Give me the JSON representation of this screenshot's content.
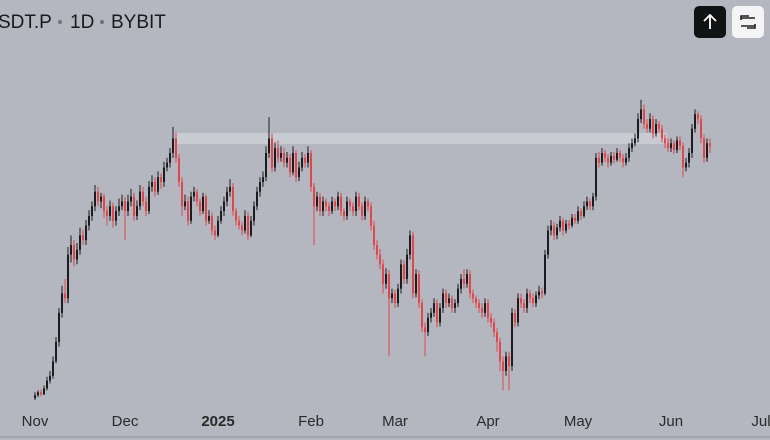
{
  "header": {
    "symbol": "SDT.P",
    "interval": "1D",
    "exchange": "BYBIT"
  },
  "chart_data": {
    "type": "candlestick",
    "up_color": "#1c1c1e",
    "down_color": "#e0474c",
    "ylim": [
      0,
      320
    ],
    "xticks": [
      {
        "value": 0,
        "label": "Nov"
      },
      {
        "value": 30,
        "label": "Dec"
      },
      {
        "value": 61,
        "label": "2025"
      },
      {
        "value": 92,
        "label": "Feb"
      },
      {
        "value": 120,
        "label": "Mar"
      },
      {
        "value": 151,
        "label": "Apr"
      },
      {
        "value": 181,
        "label": "May"
      },
      {
        "value": 212,
        "label": "Jun"
      },
      {
        "value": 242,
        "label": "Jul"
      }
    ],
    "ohlc": [
      [
        2,
        8,
        0,
        5
      ],
      [
        5,
        10,
        3,
        8
      ],
      [
        8,
        11,
        4,
        6
      ],
      [
        6,
        15,
        5,
        12
      ],
      [
        12,
        24,
        10,
        20
      ],
      [
        20,
        30,
        17,
        25
      ],
      [
        25,
        45,
        22,
        40
      ],
      [
        40,
        65,
        38,
        60
      ],
      [
        60,
        95,
        55,
        90
      ],
      [
        90,
        118,
        85,
        110
      ],
      [
        110,
        125,
        100,
        105
      ],
      [
        105,
        158,
        100,
        150
      ],
      [
        150,
        170,
        142,
        160
      ],
      [
        160,
        165,
        138,
        145
      ],
      [
        145,
        162,
        140,
        155
      ],
      [
        155,
        178,
        150,
        170
      ],
      [
        170,
        176,
        160,
        165
      ],
      [
        165,
        186,
        160,
        180
      ],
      [
        180,
        196,
        175,
        190
      ],
      [
        190,
        205,
        185,
        200
      ],
      [
        200,
        222,
        195,
        215
      ],
      [
        215,
        220,
        200,
        205
      ],
      [
        205,
        214,
        198,
        210
      ],
      [
        210,
        213,
        188,
        195
      ],
      [
        195,
        200,
        180,
        190
      ],
      [
        190,
        206,
        185,
        200
      ],
      [
        200,
        204,
        178,
        185
      ],
      [
        185,
        200,
        180,
        195
      ],
      [
        195,
        208,
        190,
        200
      ],
      [
        200,
        212,
        196,
        205
      ],
      [
        205,
        210,
        165,
        195
      ],
      [
        195,
        212,
        190,
        205
      ],
      [
        205,
        218,
        200,
        210
      ],
      [
        210,
        214,
        185,
        190
      ],
      [
        190,
        206,
        186,
        200
      ],
      [
        200,
        222,
        196,
        215
      ],
      [
        215,
        220,
        200,
        205
      ],
      [
        205,
        210,
        190,
        195
      ],
      [
        195,
        226,
        192,
        220
      ],
      [
        220,
        232,
        215,
        225
      ],
      [
        225,
        230,
        210,
        215
      ],
      [
        215,
        236,
        212,
        230
      ],
      [
        230,
        234,
        218,
        225
      ],
      [
        225,
        246,
        220,
        240
      ],
      [
        240,
        250,
        236,
        245
      ],
      [
        245,
        260,
        240,
        255
      ],
      [
        255,
        282,
        250,
        270
      ],
      [
        270,
        276,
        245,
        250
      ],
      [
        250,
        254,
        220,
        225
      ],
      [
        225,
        230,
        190,
        200
      ],
      [
        200,
        212,
        196,
        205
      ],
      [
        205,
        210,
        180,
        185
      ],
      [
        185,
        215,
        182,
        210
      ],
      [
        210,
        220,
        205,
        215
      ],
      [
        215,
        218,
        200,
        205
      ],
      [
        205,
        208,
        190,
        195
      ],
      [
        195,
        214,
        192,
        210
      ],
      [
        210,
        212,
        180,
        185
      ],
      [
        185,
        196,
        182,
        190
      ],
      [
        190,
        194,
        170,
        175
      ],
      [
        175,
        180,
        165,
        170
      ],
      [
        170,
        190,
        168,
        185
      ],
      [
        185,
        200,
        182,
        195
      ],
      [
        195,
        210,
        190,
        205
      ],
      [
        205,
        220,
        200,
        215
      ],
      [
        215,
        228,
        210,
        220
      ],
      [
        220,
        224,
        190,
        195
      ],
      [
        195,
        198,
        180,
        185
      ],
      [
        185,
        190,
        176,
        180
      ],
      [
        180,
        184,
        170,
        175
      ],
      [
        175,
        196,
        172,
        190
      ],
      [
        190,
        194,
        165,
        170
      ],
      [
        170,
        190,
        168,
        185
      ],
      [
        185,
        205,
        180,
        200
      ],
      [
        200,
        220,
        196,
        215
      ],
      [
        215,
        230,
        210,
        225
      ],
      [
        225,
        236,
        220,
        230
      ],
      [
        230,
        262,
        226,
        255
      ],
      [
        255,
        292,
        250,
        270
      ],
      [
        270,
        275,
        235,
        240
      ],
      [
        240,
        266,
        236,
        260
      ],
      [
        260,
        268,
        245,
        250
      ],
      [
        250,
        262,
        246,
        255
      ],
      [
        255,
        260,
        240,
        245
      ],
      [
        245,
        256,
        240,
        250
      ],
      [
        250,
        254,
        230,
        235
      ],
      [
        235,
        262,
        232,
        255
      ],
      [
        255,
        258,
        225,
        230
      ],
      [
        230,
        246,
        226,
        240
      ],
      [
        240,
        256,
        236,
        250
      ],
      [
        250,
        254,
        240,
        245
      ],
      [
        245,
        262,
        240,
        255
      ],
      [
        255,
        258,
        215,
        220
      ],
      [
        220,
        224,
        160,
        200
      ],
      [
        200,
        215,
        195,
        210
      ],
      [
        210,
        214,
        190,
        195
      ],
      [
        195,
        210,
        190,
        205
      ],
      [
        205,
        208,
        195,
        200
      ],
      [
        200,
        204,
        190,
        195
      ],
      [
        195,
        210,
        192,
        205
      ],
      [
        205,
        208,
        195,
        200
      ],
      [
        200,
        215,
        196,
        210
      ],
      [
        210,
        214,
        190,
        195
      ],
      [
        195,
        198,
        185,
        190
      ],
      [
        190,
        210,
        186,
        205
      ],
      [
        205,
        208,
        195,
        200
      ],
      [
        200,
        204,
        190,
        195
      ],
      [
        195,
        215,
        190,
        210
      ],
      [
        210,
        214,
        196,
        200
      ],
      [
        200,
        204,
        185,
        190
      ],
      [
        190,
        210,
        186,
        205
      ],
      [
        205,
        208,
        195,
        200
      ],
      [
        200,
        204,
        175,
        180
      ],
      [
        180,
        185,
        155,
        160
      ],
      [
        160,
        165,
        145,
        150
      ],
      [
        150,
        156,
        135,
        140
      ],
      [
        140,
        145,
        110,
        120
      ],
      [
        120,
        136,
        115,
        130
      ],
      [
        130,
        134,
        45,
        105
      ],
      [
        105,
        115,
        100,
        110
      ],
      [
        110,
        114,
        95,
        100
      ],
      [
        100,
        120,
        96,
        115
      ],
      [
        115,
        145,
        110,
        140
      ],
      [
        140,
        144,
        120,
        125
      ],
      [
        125,
        156,
        120,
        150
      ],
      [
        150,
        175,
        145,
        170
      ],
      [
        170,
        174,
        105,
        110
      ],
      [
        110,
        135,
        106,
        130
      ],
      [
        130,
        134,
        95,
        100
      ],
      [
        100,
        104,
        70,
        75
      ],
      [
        75,
        80,
        45,
        70
      ],
      [
        70,
        90,
        66,
        85
      ],
      [
        85,
        95,
        80,
        90
      ],
      [
        90,
        105,
        86,
        100
      ],
      [
        100,
        104,
        75,
        80
      ],
      [
        80,
        100,
        76,
        95
      ],
      [
        95,
        115,
        90,
        110
      ],
      [
        110,
        114,
        95,
        100
      ],
      [
        100,
        110,
        96,
        105
      ],
      [
        105,
        108,
        90,
        95
      ],
      [
        95,
        104,
        90,
        100
      ],
      [
        100,
        120,
        96,
        115
      ],
      [
        115,
        130,
        110,
        125
      ],
      [
        125,
        135,
        115,
        120
      ],
      [
        120,
        135,
        116,
        130
      ],
      [
        130,
        134,
        105,
        110
      ],
      [
        110,
        114,
        100,
        105
      ],
      [
        105,
        108,
        95,
        100
      ],
      [
        100,
        104,
        90,
        95
      ],
      [
        95,
        100,
        85,
        90
      ],
      [
        90,
        105,
        86,
        100
      ],
      [
        100,
        104,
        80,
        85
      ],
      [
        85,
        90,
        75,
        80
      ],
      [
        80,
        84,
        65,
        70
      ],
      [
        70,
        74,
        50,
        60
      ],
      [
        60,
        64,
        30,
        40
      ],
      [
        40,
        45,
        10,
        30
      ],
      [
        30,
        50,
        25,
        45
      ],
      [
        45,
        50,
        10,
        35
      ],
      [
        35,
        95,
        30,
        90
      ],
      [
        90,
        94,
        75,
        80
      ],
      [
        80,
        110,
        76,
        105
      ],
      [
        105,
        110,
        95,
        100
      ],
      [
        100,
        104,
        90,
        95
      ],
      [
        95,
        115,
        90,
        110
      ],
      [
        110,
        114,
        100,
        105
      ],
      [
        105,
        110,
        96,
        100
      ],
      [
        100,
        112,
        96,
        108
      ],
      [
        108,
        118,
        104,
        112
      ],
      [
        112,
        116,
        105,
        110
      ],
      [
        110,
        155,
        108,
        150
      ],
      [
        150,
        180,
        146,
        175
      ],
      [
        175,
        186,
        170,
        180
      ],
      [
        180,
        184,
        165,
        170
      ],
      [
        170,
        182,
        166,
        178
      ],
      [
        178,
        190,
        174,
        185
      ],
      [
        185,
        188,
        170,
        175
      ],
      [
        175,
        186,
        172,
        182
      ],
      [
        182,
        186,
        176,
        180
      ],
      [
        180,
        192,
        178,
        188
      ],
      [
        188,
        192,
        182,
        185
      ],
      [
        185,
        200,
        182,
        195
      ],
      [
        195,
        198,
        186,
        190
      ],
      [
        190,
        205,
        188,
        200
      ],
      [
        200,
        210,
        196,
        205
      ],
      [
        205,
        208,
        196,
        200
      ],
      [
        200,
        214,
        196,
        210
      ],
      [
        210,
        255,
        206,
        250
      ],
      [
        250,
        256,
        240,
        245
      ],
      [
        245,
        260,
        242,
        255
      ],
      [
        255,
        258,
        246,
        250
      ],
      [
        250,
        254,
        240,
        245
      ],
      [
        245,
        256,
        242,
        252
      ],
      [
        252,
        256,
        244,
        248
      ],
      [
        248,
        260,
        246,
        255
      ],
      [
        255,
        258,
        246,
        250
      ],
      [
        250,
        254,
        240,
        245
      ],
      [
        245,
        255,
        242,
        250
      ],
      [
        250,
        265,
        246,
        260
      ],
      [
        260,
        270,
        256,
        265
      ],
      [
        265,
        275,
        262,
        270
      ],
      [
        270,
        296,
        266,
        290
      ],
      [
        290,
        310,
        286,
        300
      ],
      [
        300,
        305,
        280,
        285
      ],
      [
        285,
        290,
        276,
        280
      ],
      [
        280,
        296,
        276,
        290
      ],
      [
        290,
        294,
        270,
        275
      ],
      [
        275,
        290,
        272,
        285
      ],
      [
        285,
        288,
        276,
        280
      ],
      [
        280,
        284,
        266,
        270
      ],
      [
        270,
        274,
        260,
        265
      ],
      [
        265,
        270,
        256,
        260
      ],
      [
        260,
        270,
        256,
        265
      ],
      [
        265,
        268,
        254,
        258
      ],
      [
        258,
        272,
        255,
        268
      ],
      [
        268,
        272,
        258,
        262
      ],
      [
        262,
        266,
        230,
        240
      ],
      [
        240,
        250,
        236,
        245
      ],
      [
        245,
        260,
        240,
        255
      ],
      [
        255,
        285,
        250,
        280
      ],
      [
        280,
        300,
        276,
        295
      ],
      [
        295,
        298,
        285,
        290
      ],
      [
        290,
        294,
        265,
        270
      ],
      [
        270,
        274,
        245,
        250
      ],
      [
        250,
        270,
        246,
        265
      ],
      [
        265,
        270,
        255,
        262
      ]
    ]
  }
}
